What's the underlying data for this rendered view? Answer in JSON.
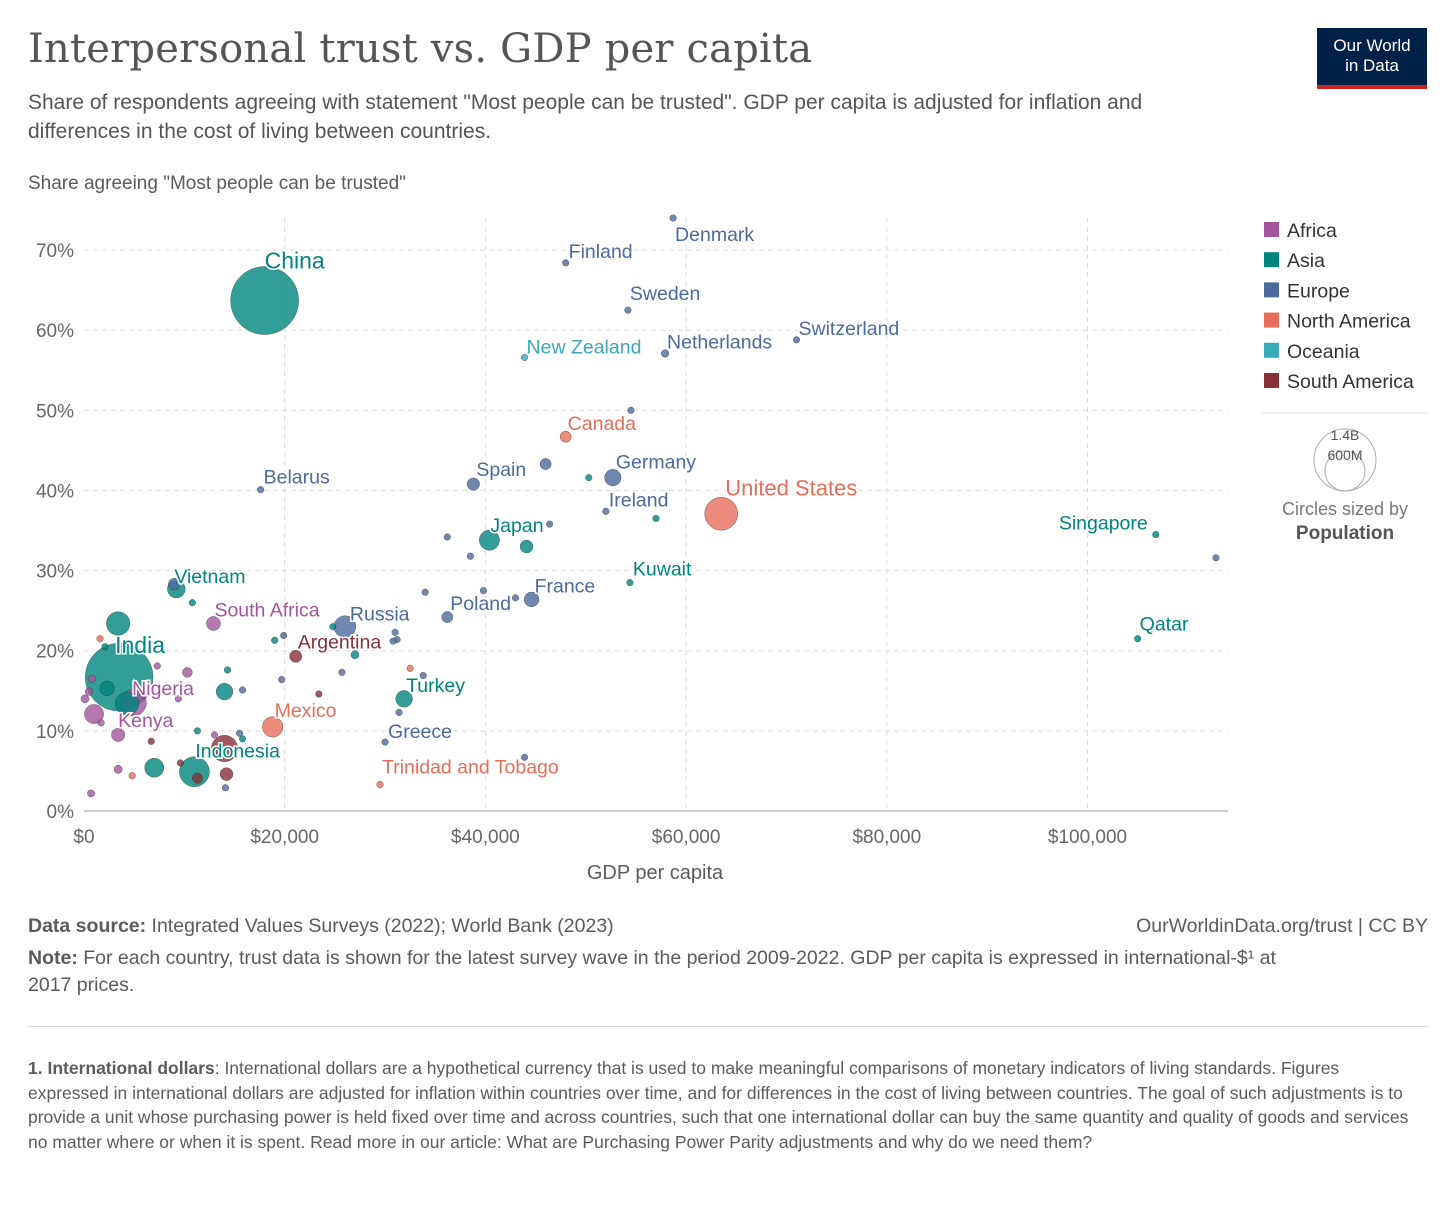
{
  "header": {
    "title": "Interpersonal trust vs. GDP per capita",
    "subtitle": "Share of respondents agreeing with statement \"Most people can be trusted\". GDP per capita is adjusted for inflation and differences in the cost of living between countries.",
    "logo_line1": "Our World",
    "logo_line2": "in Data"
  },
  "colors": {
    "Africa": "#a2559c",
    "Asia": "#00847e",
    "Europe": "#4c6a9c",
    "North America": "#e56e5a",
    "Oceania": "#38aaba",
    "South America": "#883039"
  },
  "chart_data": {
    "type": "scatter",
    "ylabel": "Share agreeing \"Most people can be trusted\"",
    "xlabel": "GDP per capita",
    "xlim": [
      0,
      114000
    ],
    "ylim": [
      0,
      74
    ],
    "x_ticks": [
      {
        "value": 0,
        "label": "$0"
      },
      {
        "value": 20000,
        "label": "$20,000"
      },
      {
        "value": 40000,
        "label": "$40,000"
      },
      {
        "value": 60000,
        "label": "$60,000"
      },
      {
        "value": 80000,
        "label": "$80,000"
      },
      {
        "value": 100000,
        "label": "$100,000"
      }
    ],
    "y_ticks": [
      {
        "value": 0,
        "label": "0%"
      },
      {
        "value": 10,
        "label": "10%"
      },
      {
        "value": 20,
        "label": "20%"
      },
      {
        "value": 30,
        "label": "30%"
      },
      {
        "value": 40,
        "label": "40%"
      },
      {
        "value": 50,
        "label": "50%"
      },
      {
        "value": 60,
        "label": "60%"
      },
      {
        "value": 70,
        "label": "70%"
      }
    ],
    "grid": true,
    "size_legend": {
      "large": "1.4B",
      "small": "600M",
      "caption1": "Circles sized by",
      "caption2": "Population"
    },
    "legend": [
      "Africa",
      "Asia",
      "Europe",
      "North America",
      "Oceania",
      "South America"
    ],
    "legend_position": "right",
    "points": [
      {
        "label": "China",
        "region": "Asia",
        "x": 18000,
        "y": 63.7,
        "pop": 1410
      },
      {
        "label": "India",
        "region": "Asia",
        "x": 3500,
        "y": 16.7,
        "pop": 1400
      },
      {
        "label": "Denmark",
        "region": "Europe",
        "x": 58700,
        "y": 74.0,
        "pop": 5.9
      },
      {
        "label": "Finland",
        "region": "Europe",
        "x": 48000,
        "y": 68.4,
        "pop": 5.5
      },
      {
        "label": "Sweden",
        "region": "Europe",
        "x": 54200,
        "y": 62.5,
        "pop": 10.4
      },
      {
        "label": "Switzerland",
        "region": "Europe",
        "x": 71000,
        "y": 58.8,
        "pop": 8.7
      },
      {
        "label": "Netherlands",
        "region": "Europe",
        "x": 57900,
        "y": 57.1,
        "pop": 17.5
      },
      {
        "label": "New Zealand",
        "region": "Oceania",
        "x": 43900,
        "y": 56.6,
        "pop": 5.1
      },
      {
        "label": "Canada",
        "region": "North America",
        "x": 48000,
        "y": 46.7,
        "pop": 38
      },
      {
        "label": "Belarus",
        "region": "Europe",
        "x": 17600,
        "y": 40.1,
        "pop": 9.3
      },
      {
        "label": "Spain",
        "region": "Europe",
        "x": 38800,
        "y": 40.8,
        "pop": 47
      },
      {
        "label": "Germany",
        "region": "Europe",
        "x": 52700,
        "y": 41.6,
        "pop": 83
      },
      {
        "label": "Ireland",
        "region": "Europe",
        "x": 52000,
        "y": 37.4,
        "pop": 5.0
      },
      {
        "label": "United States",
        "region": "North America",
        "x": 63500,
        "y": 37.1,
        "pop": 332
      },
      {
        "label": "Japan",
        "region": "Asia",
        "x": 40400,
        "y": 33.8,
        "pop": 125
      },
      {
        "label": "Singapore",
        "region": "Asia",
        "x": 106800,
        "y": 34.5,
        "pop": 5.5
      },
      {
        "label": "Vietnam",
        "region": "Asia",
        "x": 9200,
        "y": 27.7,
        "pop": 97
      },
      {
        "label": "Kuwait",
        "region": "Asia",
        "x": 54400,
        "y": 28.5,
        "pop": 4.3
      },
      {
        "label": "France",
        "region": "Europe",
        "x": 44600,
        "y": 26.4,
        "pop": 67
      },
      {
        "label": "Poland",
        "region": "Europe",
        "x": 36200,
        "y": 24.2,
        "pop": 38
      },
      {
        "label": "South Africa",
        "region": "Africa",
        "x": 12900,
        "y": 23.4,
        "pop": 60
      },
      {
        "label": "Russia",
        "region": "Europe",
        "x": 26000,
        "y": 23.0,
        "pop": 145
      },
      {
        "label": "Argentina",
        "region": "South America",
        "x": 21100,
        "y": 19.3,
        "pop": 45
      },
      {
        "label": "Qatar",
        "region": "Asia",
        "x": 105000,
        "y": 21.5,
        "pop": 2.9
      },
      {
        "label": "Nigeria",
        "region": "Africa",
        "x": 4900,
        "y": 13.5,
        "pop": 213
      },
      {
        "label": "Turkey",
        "region": "Asia",
        "x": 31900,
        "y": 14.0,
        "pop": 85
      },
      {
        "label": "Mexico",
        "region": "North America",
        "x": 18800,
        "y": 10.5,
        "pop": 128
      },
      {
        "label": "Kenya",
        "region": "Africa",
        "x": 3400,
        "y": 9.5,
        "pop": 54
      },
      {
        "label": "Greece",
        "region": "Europe",
        "x": 30000,
        "y": 8.6,
        "pop": 10.5
      },
      {
        "label": "Indonesia",
        "region": "Asia",
        "x": 11000,
        "y": 4.9,
        "pop": 275
      },
      {
        "label": "Trinidad and Tobago",
        "region": "North America",
        "x": 29500,
        "y": 3.3,
        "pop": 1.4
      },
      {
        "label": "",
        "region": "Europe",
        "x": 112800,
        "y": 31.6,
        "pop": 0.6
      },
      {
        "label": "",
        "region": "Europe",
        "x": 54500,
        "y": 50.0,
        "pop": 5.4
      },
      {
        "label": "",
        "region": "Asia",
        "x": 50300,
        "y": 41.6,
        "pop": 9
      },
      {
        "label": "",
        "region": "Europe",
        "x": 46000,
        "y": 43.3,
        "pop": 38
      },
      {
        "label": "",
        "region": "Europe",
        "x": 36200,
        "y": 34.2,
        "pop": 4.5
      },
      {
        "label": "",
        "region": "Europe",
        "x": 38500,
        "y": 31.8,
        "pop": 8
      },
      {
        "label": "",
        "region": "Europe",
        "x": 34000,
        "y": 27.3,
        "pop": 6
      },
      {
        "label": "",
        "region": "Europe",
        "x": 39800,
        "y": 27.5,
        "pop": 4
      },
      {
        "label": "",
        "region": "Europe",
        "x": 43000,
        "y": 26.6,
        "pop": 10
      },
      {
        "label": "",
        "region": "Asia",
        "x": 44100,
        "y": 33.0,
        "pop": 51
      },
      {
        "label": "",
        "region": "Europe",
        "x": 46400,
        "y": 35.8,
        "pop": 2.1
      },
      {
        "label": "",
        "region": "Asia",
        "x": 57000,
        "y": 36.5,
        "pop": 3.4
      },
      {
        "label": "",
        "region": "Europe",
        "x": 9000,
        "y": 28.3,
        "pop": 44
      },
      {
        "label": "",
        "region": "Asia",
        "x": 10800,
        "y": 26.0,
        "pop": 9
      },
      {
        "label": "",
        "region": "Asia",
        "x": 3400,
        "y": 23.4,
        "pop": 170
      },
      {
        "label": "",
        "region": "North America",
        "x": 1600,
        "y": 21.5,
        "pop": 11
      },
      {
        "label": "",
        "region": "Asia",
        "x": 24800,
        "y": 23.0,
        "pop": 11
      },
      {
        "label": "",
        "region": "Europe",
        "x": 19900,
        "y": 21.9,
        "pop": 10
      },
      {
        "label": "",
        "region": "Asia",
        "x": 19000,
        "y": 21.3,
        "pop": 7
      },
      {
        "label": "",
        "region": "Europe",
        "x": 31000,
        "y": 22.3,
        "pop": 8
      },
      {
        "label": "",
        "region": "Europe",
        "x": 31200,
        "y": 21.4,
        "pop": 5
      },
      {
        "label": "",
        "region": "Europe",
        "x": 30800,
        "y": 21.2,
        "pop": 3
      },
      {
        "label": "",
        "region": "Asia",
        "x": 27000,
        "y": 19.5,
        "pop": 20
      },
      {
        "label": "",
        "region": "Europe",
        "x": 25700,
        "y": 17.3,
        "pop": 3.7
      },
      {
        "label": "",
        "region": "North America",
        "x": 32500,
        "y": 17.8,
        "pop": 3
      },
      {
        "label": "",
        "region": "Europe",
        "x": 33800,
        "y": 16.9,
        "pop": 3.1
      },
      {
        "label": "",
        "region": "Asia",
        "x": 14300,
        "y": 17.6,
        "pop": 10
      },
      {
        "label": "",
        "region": "Africa",
        "x": 7300,
        "y": 18.1,
        "pop": 6
      },
      {
        "label": "",
        "region": "Africa",
        "x": 10300,
        "y": 17.3,
        "pop": 30
      },
      {
        "label": "",
        "region": "Asia",
        "x": 2100,
        "y": 20.5,
        "pop": 9
      },
      {
        "label": "",
        "region": "Africa",
        "x": 800,
        "y": 16.5,
        "pop": 19
      },
      {
        "label": "",
        "region": "Africa",
        "x": 500,
        "y": 14.9,
        "pop": 18
      },
      {
        "label": "",
        "region": "Africa",
        "x": 100,
        "y": 14.0,
        "pop": 20
      },
      {
        "label": "",
        "region": "Africa",
        "x": 1000,
        "y": 12.1,
        "pop": 112
      },
      {
        "label": "",
        "region": "Africa",
        "x": 1700,
        "y": 11.0,
        "pop": 12
      },
      {
        "label": "",
        "region": "Asia",
        "x": 2300,
        "y": 15.3,
        "pop": 66
      },
      {
        "label": "",
        "region": "Asia",
        "x": 4300,
        "y": 13.4,
        "pop": 170
      },
      {
        "label": "",
        "region": "Africa",
        "x": 6000,
        "y": 14.5,
        "pop": 10
      },
      {
        "label": "",
        "region": "Africa",
        "x": 9400,
        "y": 14.0,
        "pop": 8
      },
      {
        "label": "",
        "region": "Asia",
        "x": 14000,
        "y": 14.9,
        "pop": 85
      },
      {
        "label": "",
        "region": "Europe",
        "x": 15800,
        "y": 15.1,
        "pop": 4
      },
      {
        "label": "",
        "region": "Europe",
        "x": 19700,
        "y": 16.4,
        "pop": 5
      },
      {
        "label": "",
        "region": "South America",
        "x": 23400,
        "y": 14.6,
        "pop": 6
      },
      {
        "label": "",
        "region": "Europe",
        "x": 31400,
        "y": 12.3,
        "pop": 3
      },
      {
        "label": "",
        "region": "Asia",
        "x": 11300,
        "y": 10.0,
        "pop": 4
      },
      {
        "label": "",
        "region": "Africa",
        "x": 13000,
        "y": 9.5,
        "pop": 6
      },
      {
        "label": "",
        "region": "Europe",
        "x": 15500,
        "y": 9.7,
        "pop": 5
      },
      {
        "label": "",
        "region": "Asia",
        "x": 15800,
        "y": 9.0,
        "pop": 4
      },
      {
        "label": "",
        "region": "South America",
        "x": 6700,
        "y": 8.7,
        "pop": 5
      },
      {
        "label": "",
        "region": "Africa",
        "x": 13600,
        "y": 7.3,
        "pop": 19
      },
      {
        "label": "",
        "region": "South America",
        "x": 14000,
        "y": 7.8,
        "pop": 214
      },
      {
        "label": "",
        "region": "Asia",
        "x": 7000,
        "y": 5.4,
        "pop": 111
      },
      {
        "label": "",
        "region": "South America",
        "x": 9600,
        "y": 6.0,
        "pop": 7
      },
      {
        "label": "",
        "region": "South America",
        "x": 11300,
        "y": 4.1,
        "pop": 33
      },
      {
        "label": "",
        "region": "South America",
        "x": 14200,
        "y": 4.6,
        "pop": 51
      },
      {
        "label": "",
        "region": "Africa",
        "x": 3400,
        "y": 5.2,
        "pop": 21
      },
      {
        "label": "",
        "region": "North America",
        "x": 4800,
        "y": 4.4,
        "pop": 10
      },
      {
        "label": "",
        "region": "Europe",
        "x": 14100,
        "y": 2.9,
        "pop": 3
      },
      {
        "label": "",
        "region": "Africa",
        "x": 700,
        "y": 2.2,
        "pop": 16
      },
      {
        "label": "",
        "region": "Europe",
        "x": 43900,
        "y": 6.7,
        "pop": 3
      }
    ]
  },
  "footer": {
    "source_label": "Data source:",
    "source_text": "Integrated Values Surveys (2022); World Bank (2023)",
    "url": "OurWorldinData.org/trust | CC BY",
    "note_label": "Note:",
    "note_text": "For each country, trust data is shown for the latest survey wave in the period 2009-2022. GDP per capita is expressed in international-$¹ at 2017 prices.",
    "footnote_label": "1. International dollars",
    "footnote_text": ": International dollars are a hypothetical currency that is used to make meaningful comparisons of monetary indicators of living standards. Figures expressed in international dollars are adjusted for inflation within countries over time, and for differences in the cost of living between countries. The goal of such adjustments is to provide a unit whose purchasing power is held fixed over time and across countries, such that one international dollar can buy the same quantity and quality of goods and services no matter where or when it is spent. Read more in our article: What are Purchasing Power Parity adjustments and why do we need them?"
  }
}
